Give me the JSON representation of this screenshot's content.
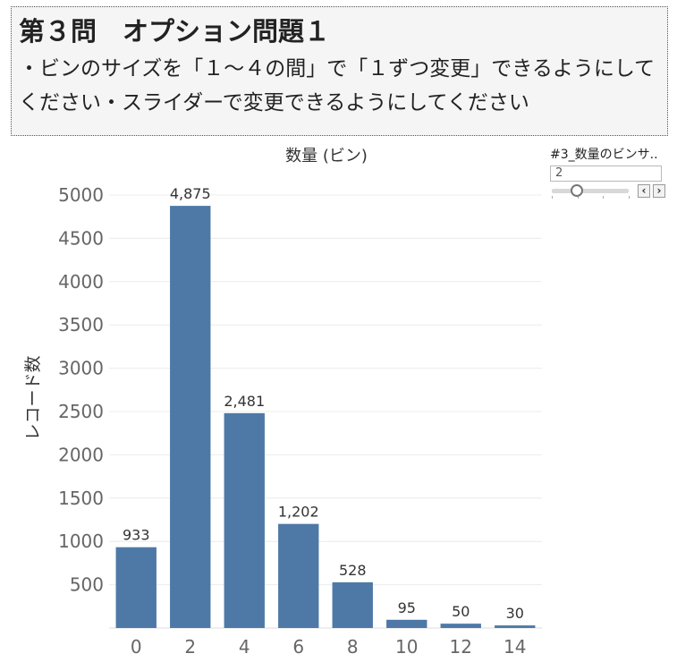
{
  "header": {
    "title": "第３問　オプション問題１",
    "description": "・ビンのサイズを「１～４の間」で「１ずつ変更」できるようにしてください・スライダーで変更できるようにしてください"
  },
  "parameter": {
    "title": "#3_数量のビンサ..",
    "value": "2",
    "prev_icon": "chevron-left-icon",
    "next_icon": "chevron-right-icon",
    "prev_label": "‹",
    "next_label": "›",
    "slider_level": 0.33
  },
  "chart_data": {
    "type": "bar",
    "title": "数量 (ビン)",
    "xlabel": "",
    "ylabel": "レコード数",
    "categories": [
      "0",
      "2",
      "4",
      "6",
      "8",
      "10",
      "12",
      "14"
    ],
    "values": [
      933,
      4875,
      2481,
      1202,
      528,
      95,
      50,
      30
    ],
    "value_labels": [
      "933",
      "4,875",
      "2,481",
      "1,202",
      "528",
      "95",
      "50",
      "30"
    ],
    "yticks": [
      500,
      1000,
      1500,
      2000,
      2500,
      3000,
      3500,
      4000,
      4500,
      5000
    ],
    "ylim": [
      0,
      5300
    ],
    "grid": true,
    "bar_color": "#4e79a7"
  }
}
